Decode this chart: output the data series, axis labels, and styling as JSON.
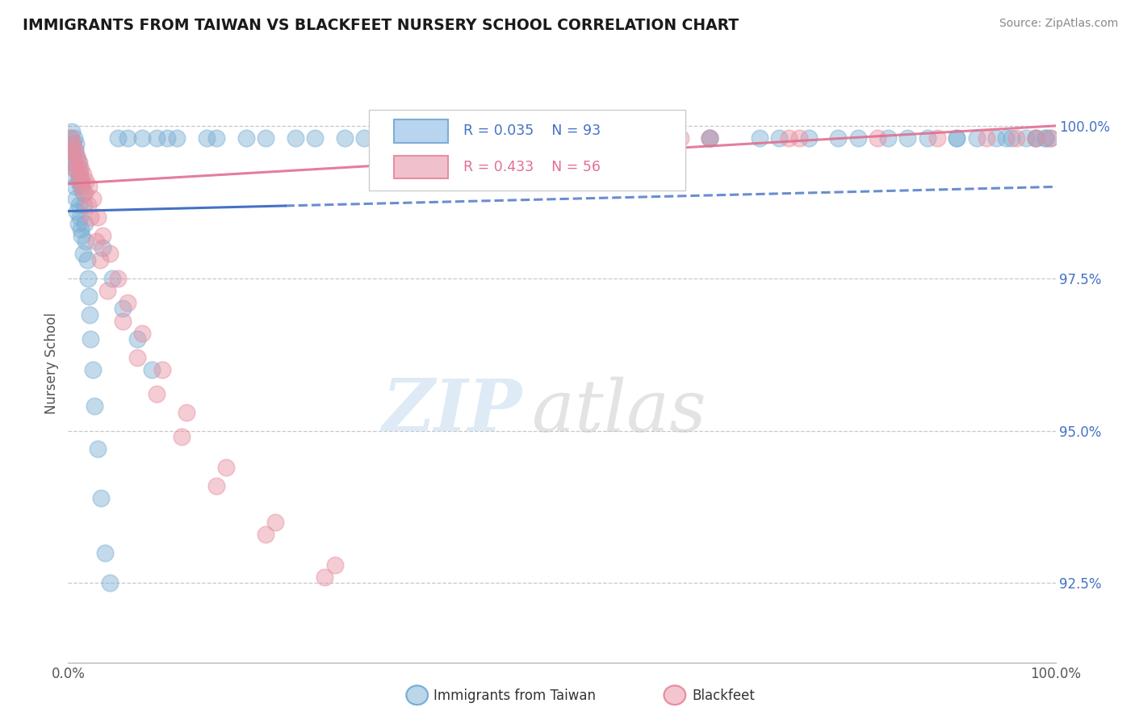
{
  "title": "IMMIGRANTS FROM TAIWAN VS BLACKFEET NURSERY SCHOOL CORRELATION CHART",
  "source": "Source: ZipAtlas.com",
  "ylabel": "Nursery School",
  "xlim": [
    0.0,
    100.0
  ],
  "ylim": [
    91.2,
    101.0
  ],
  "yticks": [
    92.5,
    95.0,
    97.5,
    100.0
  ],
  "blue_R": 0.035,
  "blue_N": 93,
  "pink_R": 0.433,
  "pink_N": 56,
  "blue_label": "Immigrants from Taiwan",
  "pink_label": "Blackfeet",
  "blue_color": "#7bafd4",
  "pink_color": "#e88fa0",
  "blue_line_color": "#4472c4",
  "pink_line_color": "#e07090",
  "watermark_zip": "ZIP",
  "watermark_atlas": "atlas",
  "blue_scatter_x": [
    0.2,
    0.3,
    0.4,
    0.4,
    0.5,
    0.5,
    0.5,
    0.6,
    0.6,
    0.7,
    0.7,
    0.8,
    0.8,
    0.9,
    0.9,
    1.0,
    1.0,
    1.0,
    1.1,
    1.1,
    1.2,
    1.2,
    1.3,
    1.3,
    1.4,
    1.4,
    1.5,
    1.5,
    1.6,
    1.7,
    1.8,
    1.9,
    2.0,
    2.1,
    2.2,
    2.3,
    2.5,
    2.7,
    3.0,
    3.3,
    3.7,
    4.2,
    5.0,
    6.0,
    7.5,
    9.0,
    11.0,
    14.0,
    18.0,
    23.0,
    28.0,
    35.0,
    42.0,
    50.0,
    58.0,
    65.0,
    72.0,
    78.0,
    83.0,
    87.0,
    90.0,
    92.0,
    94.0,
    95.5,
    97.0,
    98.0,
    99.0,
    99.5,
    10.0,
    15.0,
    20.0,
    25.0,
    30.0,
    35.0,
    40.0,
    45.0,
    50.0,
    55.0,
    60.0,
    65.0,
    70.0,
    75.0,
    80.0,
    85.0,
    90.0,
    95.0,
    98.0,
    99.0,
    3.5,
    4.5,
    5.5,
    7.0,
    8.5
  ],
  "blue_scatter_y": [
    99.8,
    99.6,
    99.9,
    99.4,
    99.7,
    99.5,
    99.2,
    99.8,
    99.3,
    99.6,
    99.0,
    99.7,
    98.8,
    99.5,
    98.6,
    99.4,
    99.1,
    98.4,
    99.3,
    98.7,
    99.2,
    98.5,
    99.0,
    98.3,
    99.1,
    98.2,
    98.9,
    97.9,
    98.7,
    98.4,
    98.1,
    97.8,
    97.5,
    97.2,
    96.9,
    96.5,
    96.0,
    95.4,
    94.7,
    93.9,
    93.0,
    92.5,
    99.8,
    99.8,
    99.8,
    99.8,
    99.8,
    99.8,
    99.8,
    99.8,
    99.8,
    99.8,
    99.8,
    99.8,
    99.8,
    99.8,
    99.8,
    99.8,
    99.8,
    99.8,
    99.8,
    99.8,
    99.8,
    99.8,
    99.8,
    99.8,
    99.8,
    99.8,
    99.8,
    99.8,
    99.8,
    99.8,
    99.8,
    99.8,
    99.8,
    99.8,
    99.8,
    99.8,
    99.8,
    99.8,
    99.8,
    99.8,
    99.8,
    99.8,
    99.8,
    99.8,
    99.8,
    99.8,
    98.0,
    97.5,
    97.0,
    96.5,
    96.0
  ],
  "pink_scatter_x": [
    0.3,
    0.5,
    0.7,
    0.9,
    1.1,
    1.3,
    1.5,
    1.8,
    2.1,
    2.5,
    3.0,
    3.5,
    4.2,
    5.0,
    6.0,
    7.5,
    9.5,
    12.0,
    16.0,
    21.0,
    27.0,
    35.0,
    44.0,
    55.0,
    65.0,
    74.0,
    82.0,
    88.0,
    93.0,
    96.0,
    98.0,
    99.5,
    0.4,
    0.6,
    0.8,
    1.0,
    1.2,
    1.4,
    1.7,
    2.0,
    2.3,
    2.8,
    3.2,
    4.0,
    5.5,
    7.0,
    9.0,
    11.5,
    15.0,
    20.0,
    26.0,
    33.0,
    42.0,
    52.0,
    62.0,
    73.0
  ],
  "pink_scatter_y": [
    99.8,
    99.7,
    99.6,
    99.5,
    99.4,
    99.3,
    99.2,
    99.1,
    99.0,
    98.8,
    98.5,
    98.2,
    97.9,
    97.5,
    97.1,
    96.6,
    96.0,
    95.3,
    94.4,
    93.5,
    92.8,
    99.8,
    99.8,
    99.8,
    99.8,
    99.8,
    99.8,
    99.8,
    99.8,
    99.8,
    99.8,
    99.8,
    99.6,
    99.4,
    99.3,
    99.2,
    99.1,
    99.0,
    98.9,
    98.7,
    98.5,
    98.1,
    97.8,
    97.3,
    96.8,
    96.2,
    95.6,
    94.9,
    94.1,
    93.3,
    92.6,
    99.8,
    99.8,
    99.8,
    99.8,
    99.8
  ]
}
